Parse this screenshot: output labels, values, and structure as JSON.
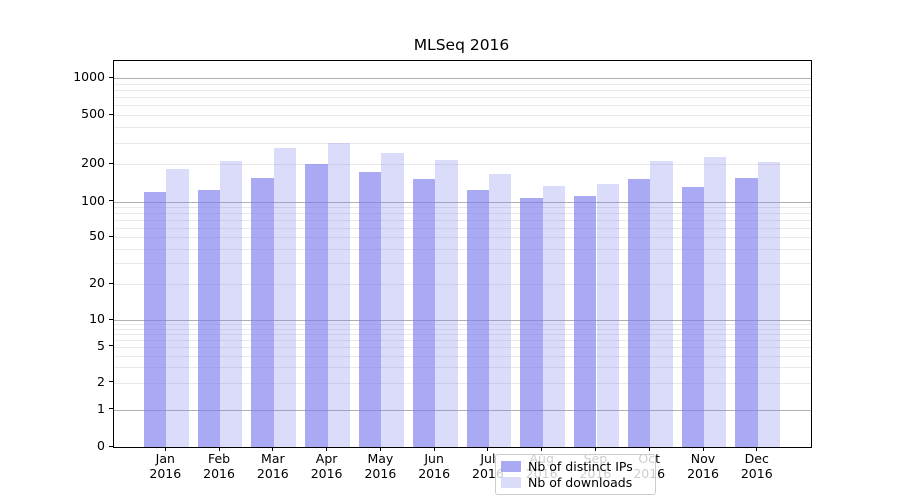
{
  "chart_data": {
    "type": "bar",
    "title": "MLSeq 2016",
    "categories": [
      "Jan",
      "Feb",
      "Mar",
      "Apr",
      "May",
      "Jun",
      "Jul",
      "Aug",
      "Sep",
      "Oct",
      "Nov",
      "Dec"
    ],
    "category_year": "2016",
    "series": [
      {
        "name": "Nb of distinct IPs",
        "color": "rgba(124,124,238,0.65)",
        "values": [
          119,
          124,
          156,
          202,
          174,
          151,
          125,
          107,
          110,
          153,
          130,
          155
        ]
      },
      {
        "name": "Nb of downloads",
        "color": "rgba(124,124,238,0.28)",
        "values": [
          184,
          213,
          272,
          297,
          248,
          217,
          166,
          134,
          140,
          212,
          231,
          209
        ]
      }
    ],
    "yscale": "symlog",
    "ytick_values": [
      0,
      1,
      2,
      5,
      10,
      20,
      50,
      100,
      200,
      500,
      1000
    ],
    "major_grid_values": [
      1,
      10,
      100,
      1000
    ],
    "minor_grid_values": [
      2,
      3,
      4,
      5,
      6,
      7,
      8,
      9,
      20,
      30,
      40,
      50,
      60,
      70,
      80,
      90,
      200,
      300,
      400,
      500,
      600,
      700,
      800,
      900
    ],
    "ylim": [
      0,
      1400
    ],
    "grid": true,
    "legend_position": "lower-center",
    "colors": {
      "major_grid": "#b0b0b0",
      "minor_grid": "#e9e9e9",
      "spine": "#000000",
      "text": "#000000",
      "legend_border": "#cccccc",
      "legend_bg": "rgba(255,255,255,0.8)",
      "background": "#ffffff"
    }
  }
}
